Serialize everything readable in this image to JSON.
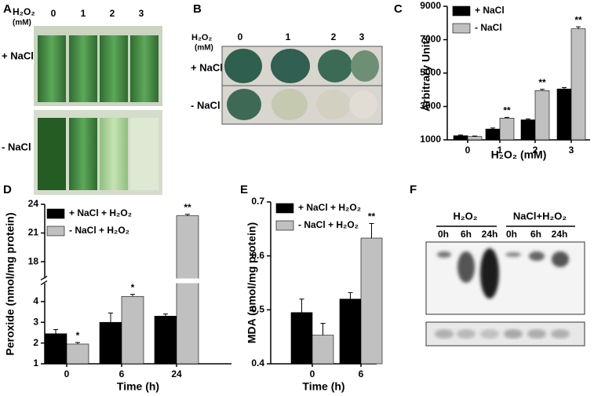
{
  "panels": {
    "A": {
      "label": "A",
      "header": "H₂O₂",
      "unit": "(mM)",
      "columns": [
        "0",
        "1",
        "2",
        "3"
      ],
      "rows": [
        "+ NaCl",
        "- NaCl"
      ]
    },
    "B": {
      "label": "B",
      "header": "H₂O₂",
      "unit": "(mM)",
      "columns": [
        "0",
        "1",
        "2",
        "3"
      ],
      "rows": [
        "+ NaCl",
        "- NaCl"
      ]
    },
    "F": {
      "label": "F",
      "groups": [
        "H₂O₂",
        "NaCl+H₂O₂"
      ],
      "lanes": [
        "0h",
        "6h",
        "24h",
        "0h",
        "6h",
        "24h"
      ]
    }
  },
  "chart_data": [
    {
      "type": "bar",
      "label": "C",
      "y_label": "Arbitrary Units",
      "x_label": "H₂O₂ (mM)",
      "categories": [
        "0",
        "1",
        "2",
        "3"
      ],
      "ylim": [
        1000,
        9000
      ],
      "yticks": [
        1000,
        3000,
        5000,
        7000,
        9000
      ],
      "legend": "upper left",
      "series": [
        {
          "name": "+ NaCl",
          "color": "#000000",
          "values": [
            1250,
            1650,
            2200,
            4050
          ],
          "errors": [
            40,
            60,
            60,
            80
          ],
          "significance": [
            null,
            null,
            null,
            null
          ]
        },
        {
          "name": "- NaCl",
          "color": "#c0c0c0",
          "values": [
            1200,
            2300,
            3950,
            7650
          ],
          "errors": [
            30,
            50,
            80,
            120
          ],
          "significance": [
            null,
            "**",
            "**",
            "**"
          ]
        }
      ]
    },
    {
      "type": "bar",
      "label": "D",
      "y_label": "Peroxide (nmol/mg protein)",
      "x_label": "Time (h)",
      "categories": [
        "0",
        "6",
        "24"
      ],
      "ylim": [
        1,
        24
      ],
      "ybreak": [
        5,
        16
      ],
      "yticks": [
        1,
        2,
        3,
        4,
        18,
        21,
        24
      ],
      "legend": "upper left",
      "series": [
        {
          "name": "+ NaCl + H₂O₂",
          "color": "#000000",
          "values": [
            2.45,
            3.0,
            3.3
          ],
          "errors": [
            0.2,
            0.45,
            0.1
          ],
          "significance": [
            null,
            null,
            null
          ]
        },
        {
          "name": "- NaCl + H₂O₂",
          "color": "#c0c0c0",
          "values": [
            1.95,
            4.25,
            22.8
          ],
          "errors": [
            0.08,
            0.1,
            0.15
          ],
          "significance": [
            "*",
            "*",
            "**"
          ]
        }
      ]
    },
    {
      "type": "bar",
      "label": "E",
      "y_label": "MDA (nmol/mg protein)",
      "x_label": "Time (h)",
      "categories": [
        "0",
        "6"
      ],
      "ylim": [
        0.4,
        0.7
      ],
      "yticks": [
        0.4,
        0.5,
        0.6,
        0.7
      ],
      "legend": "upper left",
      "series": [
        {
          "name": "+ NaCl + H₂O₂",
          "color": "#000000",
          "values": [
            0.495,
            0.52
          ],
          "errors": [
            0.025,
            0.012
          ],
          "significance": [
            null,
            null
          ]
        },
        {
          "name": "- NaCl + H₂O₂",
          "color": "#c0c0c0",
          "values": [
            0.453,
            0.633
          ],
          "errors": [
            0.022,
            0.027
          ],
          "significance": [
            null,
            "**"
          ]
        }
      ]
    }
  ]
}
